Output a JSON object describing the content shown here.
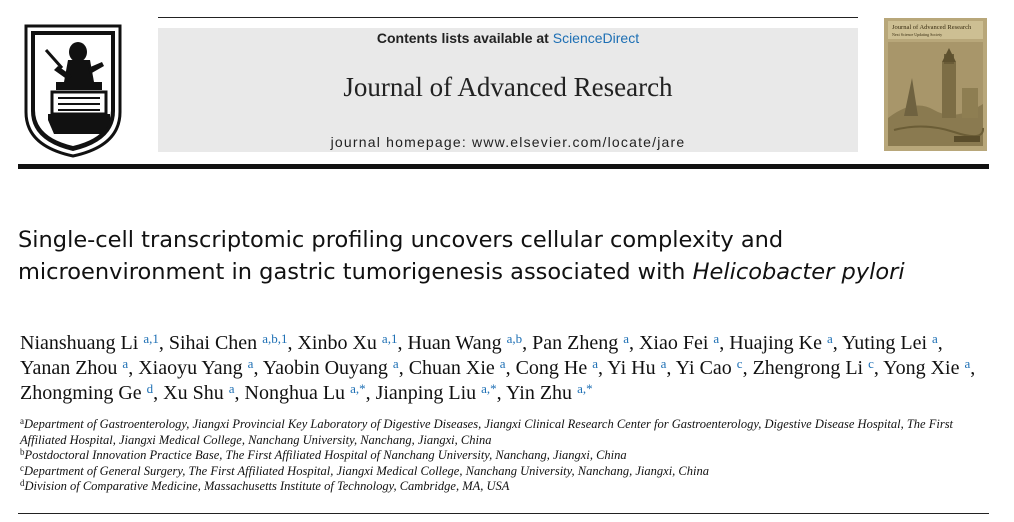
{
  "header": {
    "contents_prefix": "Contents lists available at ",
    "contents_link": "ScienceDirect",
    "journal_name": "Journal of Advanced Research",
    "homepage": "journal homepage: www.elsevier.com/locate/jare",
    "cover_title": "Journal of Advanced Research",
    "cover_subtitle": "Next Science Updating Society"
  },
  "article": {
    "title_main": "Single-cell transcriptomic profiling uncovers cellular complexity and microenvironment in gastric tumorigenesis associated with ",
    "title_italic": "Helicobacter pylori",
    "authors": [
      {
        "name": "Nianshuang Li",
        "sup": "a,1"
      },
      {
        "name": "Sihai Chen",
        "sup": "a,b,1"
      },
      {
        "name": "Xinbo Xu",
        "sup": "a,1"
      },
      {
        "name": "Huan Wang",
        "sup": "a,b"
      },
      {
        "name": "Pan Zheng",
        "sup": "a"
      },
      {
        "name": "Xiao Fei",
        "sup": "a"
      },
      {
        "name": "Huajing Ke",
        "sup": "a"
      },
      {
        "name": "Yuting Lei",
        "sup": "a"
      },
      {
        "name": "Yanan Zhou",
        "sup": "a"
      },
      {
        "name": "Xiaoyu Yang",
        "sup": "a"
      },
      {
        "name": "Yaobin Ouyang",
        "sup": "a"
      },
      {
        "name": "Chuan Xie",
        "sup": "a"
      },
      {
        "name": "Cong He",
        "sup": "a"
      },
      {
        "name": "Yi Hu",
        "sup": "a"
      },
      {
        "name": "Yi Cao",
        "sup": "c"
      },
      {
        "name": "Zhengrong Li",
        "sup": "c"
      },
      {
        "name": "Yong Xie",
        "sup": "a"
      },
      {
        "name": "Zhongming Ge",
        "sup": "d"
      },
      {
        "name": "Xu Shu",
        "sup": "a"
      },
      {
        "name": "Nonghua Lu",
        "sup": "a,*"
      },
      {
        "name": "Jianping Liu",
        "sup": "a,*"
      },
      {
        "name": "Yin Zhu",
        "sup": "a,*"
      }
    ],
    "affiliations": [
      {
        "key": "a",
        "text": "Department of Gastroenterology, Jiangxi Provincial Key Laboratory of Digestive Diseases, Jiangxi Clinical Research Center for Gastroenterology, Digestive Disease Hospital, The First Affiliated Hospital, Jiangxi Medical College, Nanchang University, Nanchang, Jiangxi, China"
      },
      {
        "key": "b",
        "text": "Postdoctoral Innovation Practice Base, The First Affiliated Hospital of Nanchang University, Nanchang, Jiangxi, China"
      },
      {
        "key": "c",
        "text": "Department of General Surgery, The First Affiliated Hospital, Jiangxi Medical College, Nanchang University, Nanchang, Jiangxi, China"
      },
      {
        "key": "d",
        "text": "Division of Comparative Medicine, Massachusetts Institute of Technology, Cambridge, MA, USA"
      }
    ]
  }
}
